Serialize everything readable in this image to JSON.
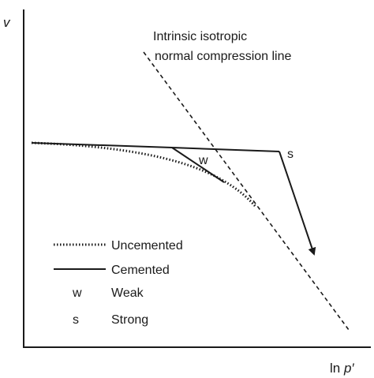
{
  "axes": {
    "y_label": "v",
    "x_label_prefix": "ln ",
    "x_label_var": "p′"
  },
  "ncl_annotation": {
    "line1": "Intrinsic isotropic",
    "line2": "normal compression line"
  },
  "curve_labels": {
    "weak": "w",
    "strong": "s"
  },
  "legend": {
    "uncemented": "Uncemented",
    "cemented": "Cemented",
    "weak_key": "w",
    "weak_text": "Weak",
    "strong_key": "s",
    "strong_text": "Strong"
  },
  "colors": {
    "ink": "#1a1a1a",
    "background": "#ffffff"
  }
}
